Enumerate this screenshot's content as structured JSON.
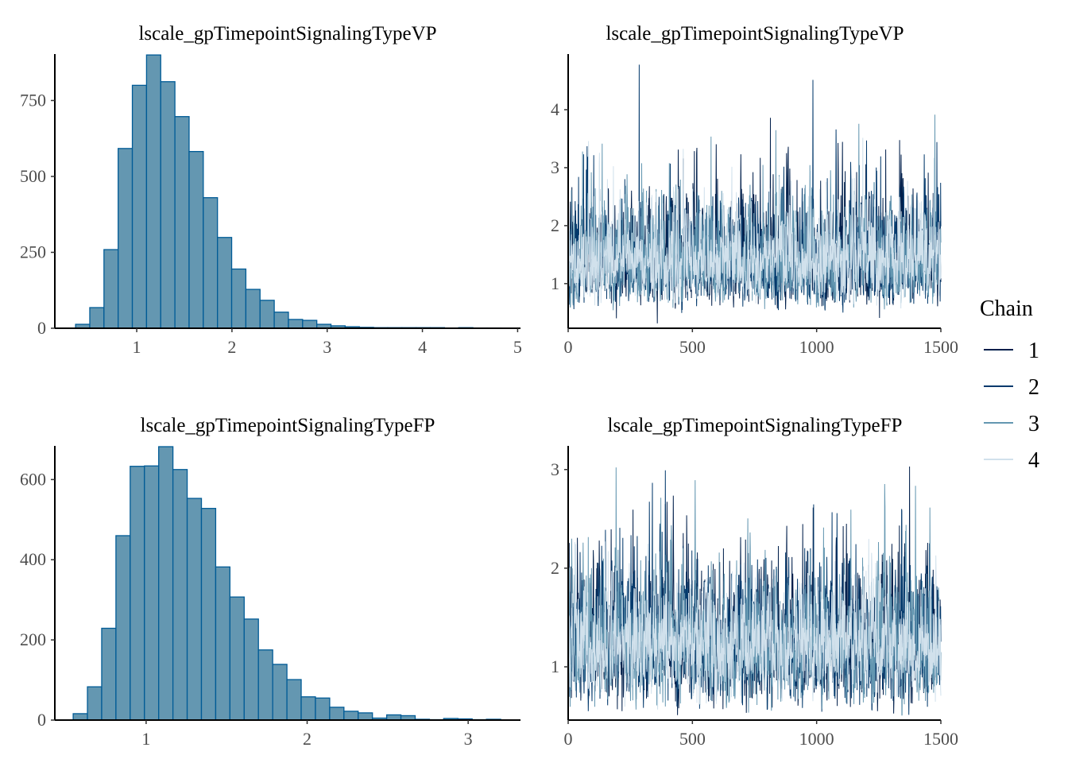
{
  "chart_data": [
    {
      "type": "bar",
      "subtype": "histogram",
      "title": "lscale_gpTimepointSignalingTypeVP",
      "bin_start": 0.358,
      "bin_width": 0.149,
      "values": [
        13,
        68,
        259,
        592,
        800,
        900,
        812,
        697,
        582,
        430,
        299,
        195,
        128,
        92,
        53,
        29,
        26,
        13,
        8,
        5,
        3,
        2,
        2,
        2,
        2,
        2,
        1,
        2,
        1,
        1
      ],
      "xlim": [
        0.14,
        5.03
      ],
      "ylim": [
        0,
        903
      ],
      "xticks": [
        "1",
        "2",
        "3",
        "4",
        "5"
      ],
      "yticks": [
        "0",
        "250",
        "500",
        "750"
      ],
      "fill": "#6497b1",
      "outline": "#005b96"
    },
    {
      "type": "line",
      "subtype": "trace",
      "title": "lscale_gpTimepointSignalingTypeVP",
      "iterations": 1500,
      "log_mean": 0.33,
      "log_sd": 0.33,
      "xlim": [
        0,
        1500
      ],
      "ylim": [
        0.23,
        4.96
      ],
      "xticks": [
        "0",
        "500",
        "1000",
        "1500"
      ],
      "yticks": [
        "1",
        "2",
        "3",
        "4"
      ]
    },
    {
      "type": "bar",
      "subtype": "histogram",
      "title": "lscale_gpTimepointSignalingTypeFP",
      "bin_start": 0.547,
      "bin_width": 0.0885,
      "values": [
        16,
        83,
        229,
        460,
        633,
        634,
        682,
        625,
        553,
        528,
        382,
        307,
        252,
        175,
        139,
        101,
        58,
        55,
        32,
        22,
        18,
        5,
        13,
        11,
        2,
        1,
        4,
        3,
        1,
        2
      ],
      "xlim": [
        0.433,
        3.325
      ],
      "ylim": [
        0,
        684
      ],
      "xticks": [
        "1",
        "2",
        "3"
      ],
      "yticks": [
        "0",
        "200",
        "400",
        "600"
      ],
      "fill": "#6497b1",
      "outline": "#005b96"
    },
    {
      "type": "line",
      "subtype": "trace",
      "title": "lscale_gpTimepointSignalingTypeFP",
      "iterations": 1500,
      "log_mean": 0.2,
      "log_sd": 0.27,
      "xlim": [
        0,
        1500
      ],
      "ylim": [
        0.46,
        3.24
      ],
      "xticks": [
        "0",
        "500",
        "1000",
        "1500"
      ],
      "yticks": [
        "1",
        "2",
        "3"
      ]
    }
  ],
  "legend": {
    "title": "Chain",
    "placement": "right",
    "items": [
      {
        "label": "1",
        "color": "#011f4b"
      },
      {
        "label": "2",
        "color": "#03396c"
      },
      {
        "label": "3",
        "color": "#6497b1"
      },
      {
        "label": "4",
        "color": "#d1e1ec"
      }
    ]
  }
}
